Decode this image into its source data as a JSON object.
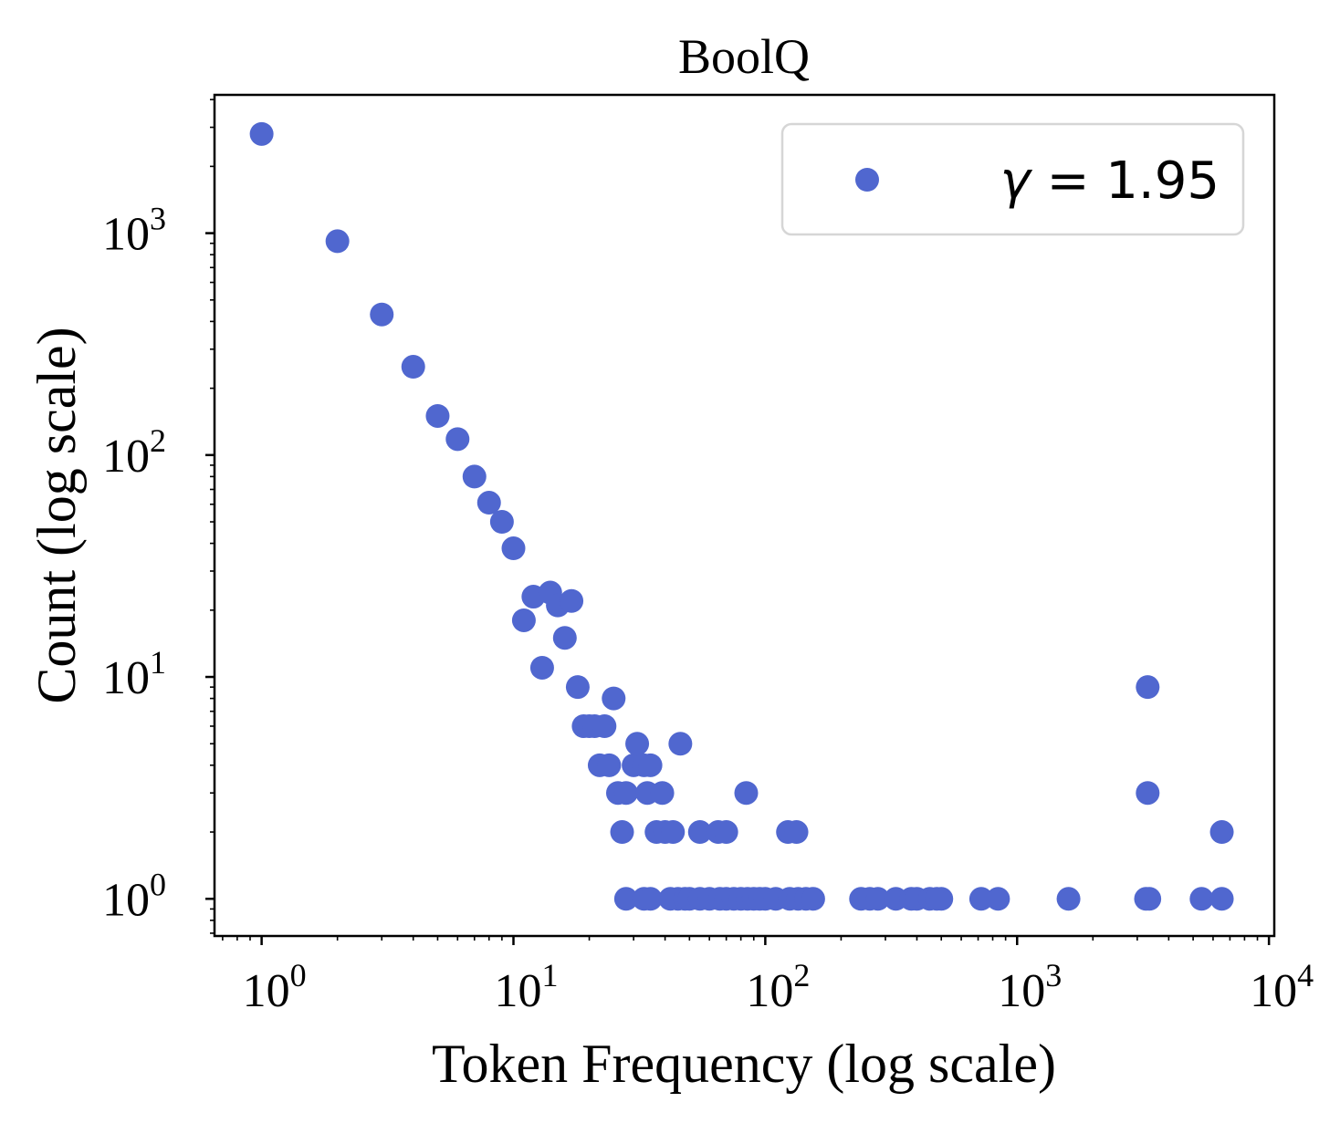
{
  "chart_data": {
    "type": "scatter",
    "title": "BoolQ",
    "xlabel": "Token Frequency (log scale)",
    "ylabel": "Count (log scale)",
    "xscale": "log",
    "yscale": "log",
    "xlim": [
      0.65,
      10500
    ],
    "ylim": [
      0.68,
      4200
    ],
    "xticks": [
      {
        "value": 1,
        "base": "10",
        "exp": "0"
      },
      {
        "value": 10,
        "base": "10",
        "exp": "1"
      },
      {
        "value": 100,
        "base": "10",
        "exp": "2"
      },
      {
        "value": 1000,
        "base": "10",
        "exp": "3"
      },
      {
        "value": 10000,
        "base": "10",
        "exp": "4"
      }
    ],
    "yticks": [
      {
        "value": 1,
        "base": "10",
        "exp": "0"
      },
      {
        "value": 10,
        "base": "10",
        "exp": "1"
      },
      {
        "value": 100,
        "base": "10",
        "exp": "2"
      },
      {
        "value": 1000,
        "base": "10",
        "exp": "3"
      }
    ],
    "grid": false,
    "legend_position": "top-right",
    "marker_color": "#5067cf",
    "series": [
      {
        "name": "γ = 1.95",
        "legend_symbol": "γ",
        "legend_rest": " = 1.95",
        "points": [
          [
            1,
            2800
          ],
          [
            2,
            920
          ],
          [
            3,
            430
          ],
          [
            4,
            250
          ],
          [
            5,
            150
          ],
          [
            6,
            118
          ],
          [
            7,
            80
          ],
          [
            8,
            61
          ],
          [
            9,
            50
          ],
          [
            10,
            38
          ],
          [
            11,
            18
          ],
          [
            12,
            23
          ],
          [
            13,
            11
          ],
          [
            14,
            24
          ],
          [
            15,
            21
          ],
          [
            16,
            15
          ],
          [
            17,
            22
          ],
          [
            18,
            9
          ],
          [
            19,
            6
          ],
          [
            20,
            6
          ],
          [
            21,
            6
          ],
          [
            22,
            4
          ],
          [
            23,
            6
          ],
          [
            24,
            4
          ],
          [
            25,
            8
          ],
          [
            26,
            3
          ],
          [
            27,
            2
          ],
          [
            28,
            3
          ],
          [
            30,
            4
          ],
          [
            31,
            5
          ],
          [
            33,
            4
          ],
          [
            34,
            3
          ],
          [
            35,
            4
          ],
          [
            37,
            2
          ],
          [
            39,
            3
          ],
          [
            40,
            2
          ],
          [
            43,
            2
          ],
          [
            46,
            5
          ],
          [
            55,
            2
          ],
          [
            65,
            2
          ],
          [
            70,
            2
          ],
          [
            84,
            3
          ],
          [
            123,
            2
          ],
          [
            133,
            2
          ],
          [
            3300,
            9
          ],
          [
            3300,
            3
          ],
          [
            6500,
            2
          ],
          [
            28,
            1
          ],
          [
            33,
            1
          ],
          [
            35,
            1
          ],
          [
            42,
            1
          ],
          [
            45,
            1
          ],
          [
            48,
            1
          ],
          [
            50,
            1
          ],
          [
            55,
            1
          ],
          [
            60,
            1
          ],
          [
            66,
            1
          ],
          [
            70,
            1
          ],
          [
            75,
            1
          ],
          [
            80,
            1
          ],
          [
            85,
            1
          ],
          [
            90,
            1
          ],
          [
            95,
            1
          ],
          [
            100,
            1
          ],
          [
            110,
            1
          ],
          [
            125,
            1
          ],
          [
            135,
            1
          ],
          [
            145,
            1
          ],
          [
            155,
            1
          ],
          [
            240,
            1
          ],
          [
            260,
            1
          ],
          [
            280,
            1
          ],
          [
            330,
            1
          ],
          [
            380,
            1
          ],
          [
            400,
            1
          ],
          [
            450,
            1
          ],
          [
            480,
            1
          ],
          [
            500,
            1
          ],
          [
            720,
            1
          ],
          [
            840,
            1
          ],
          [
            1600,
            1
          ],
          [
            3250,
            1
          ],
          [
            3350,
            1
          ],
          [
            5400,
            1
          ],
          [
            6500,
            1
          ]
        ]
      }
    ]
  }
}
